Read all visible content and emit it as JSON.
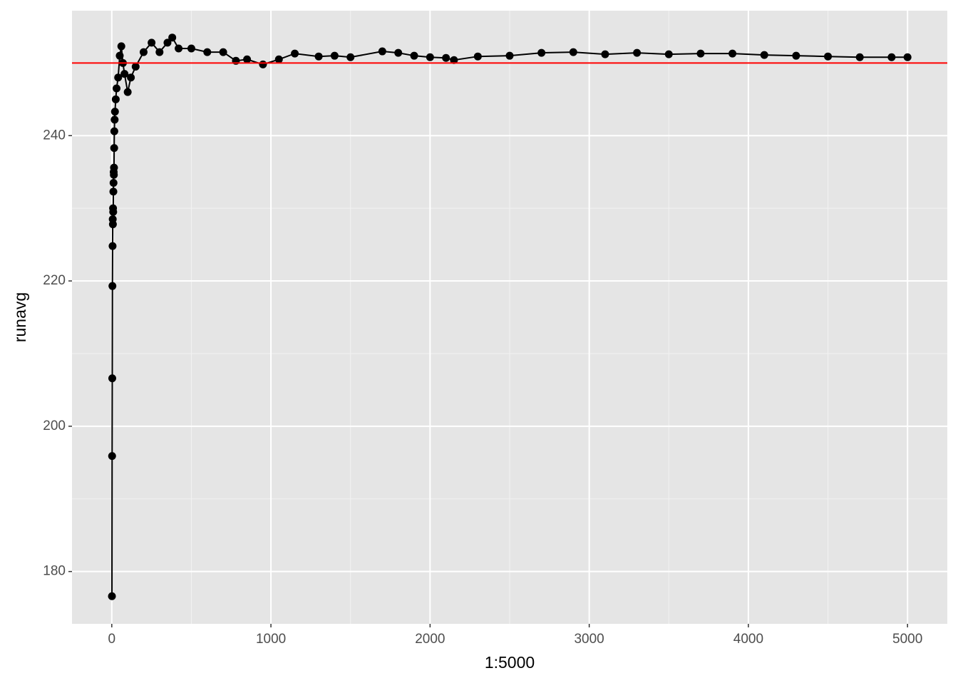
{
  "chart_data": {
    "type": "line",
    "x_label": "1:5000",
    "y_label": "runavg",
    "x": [
      1,
      2,
      3,
      4,
      5,
      6,
      7,
      8,
      9,
      10,
      11,
      12,
      13,
      14,
      15,
      16,
      18,
      20,
      25,
      30,
      40,
      50,
      60,
      70,
      80,
      100,
      120,
      150,
      200,
      250,
      300,
      350,
      380,
      420,
      500,
      600,
      700,
      780,
      850,
      950,
      1050,
      1150,
      1300,
      1400,
      1500,
      1700,
      1800,
      1900,
      2000,
      2100,
      2150,
      2300,
      2500,
      2700,
      2900,
      3100,
      3300,
      3500,
      3700,
      3900,
      4100,
      4300,
      4500,
      4700,
      4900,
      5000
    ],
    "series": [
      {
        "color": "#000000",
        "values": [
          176.6,
          195.9,
          206.6,
          219.3,
          224.8,
          228.5,
          227.8,
          230,
          229.5,
          232.3,
          233.5,
          235,
          234.6,
          235.6,
          238.3,
          240.6,
          242.2,
          243.3,
          245,
          246.5,
          248,
          251,
          252.3,
          250,
          248.5,
          246,
          248,
          249.5,
          251.5,
          252.8,
          251.5,
          252.8,
          253.5,
          252,
          252,
          251.5,
          251.5,
          250.3,
          250.5,
          249.8,
          250.5,
          251.3,
          250.9,
          251,
          250.8,
          251.6,
          251.4,
          251,
          250.8,
          250.7,
          250.4,
          250.9,
          251,
          251.4,
          251.5,
          251.2,
          251.4,
          251.2,
          251.3,
          251.3,
          251.1,
          251,
          250.9,
          250.8,
          250.8,
          250.8
        ]
      }
    ],
    "hline": 250,
    "hline_color": "#ff0000",
    "xlim": [
      -250,
      5250
    ],
    "xticks": [
      0,
      1000,
      2000,
      3000,
      4000,
      5000
    ],
    "ylim": [
      172.8,
      257.2
    ],
    "yticks": [
      180,
      200,
      220,
      240
    ],
    "grid": true
  }
}
